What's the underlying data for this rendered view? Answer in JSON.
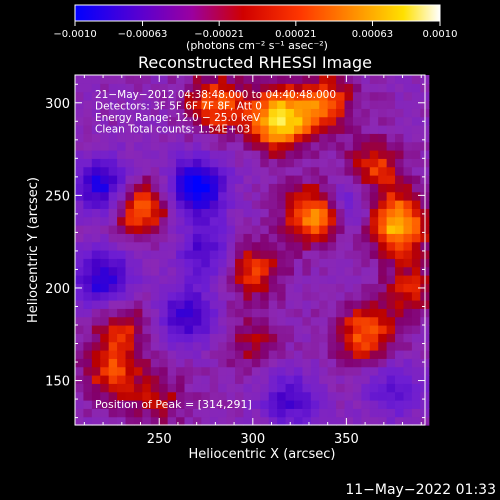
{
  "chart_data": {
    "type": "heatmap",
    "title": "Reconstructed RHESSI Image",
    "xlabel": "Heliocentric X (arcsec)",
    "ylabel": "Heliocentric Y (arcsec)",
    "xlim": [
      205,
      392
    ],
    "ylim": [
      126,
      315
    ],
    "x_ticks": [
      250,
      300,
      350
    ],
    "y_ticks": [
      150,
      200,
      250,
      300
    ],
    "colorbar": {
      "range": [
        -0.001,
        0.001
      ],
      "tick_values": [
        -0.001,
        -0.00063,
        -0.00021,
        0.00021,
        0.00063,
        0.001
      ],
      "tick_labels": [
        "−0.0010",
        "−0.00063",
        "−0.00021",
        "0.00021",
        "0.00063",
        "0.0010"
      ],
      "units_label": "(photons cm⁻² s⁻¹ asec⁻²)"
    },
    "annotations": [
      "21−May−2012 04:38:48.000 to 04:40:48.000",
      "Detectors: 3F 5F 6F 7F 8F, Att 0",
      "Energy Range: 12.0 − 25.0 keV",
      "Clean     Total counts: 1.54E+03"
    ],
    "peak_label": "Position of Peak = [314,291]",
    "peak": [
      314,
      291
    ],
    "bright_sources": [
      {
        "x": 334,
        "y": 240,
        "v": 0.00085
      },
      {
        "x": 377,
        "y": 235,
        "v": 0.0009
      },
      {
        "x": 314,
        "y": 291,
        "v": 0.001
      },
      {
        "x": 240,
        "y": 244,
        "v": 0.0007
      },
      {
        "x": 338,
        "y": 300,
        "v": 0.0006
      },
      {
        "x": 365,
        "y": 265,
        "v": 0.0005
      },
      {
        "x": 280,
        "y": 300,
        "v": 0.0006
      },
      {
        "x": 300,
        "y": 210,
        "v": 0.0005
      },
      {
        "x": 230,
        "y": 180,
        "v": 0.0004
      },
      {
        "x": 225,
        "y": 155,
        "v": 0.0005
      },
      {
        "x": 360,
        "y": 175,
        "v": 0.0006
      },
      {
        "x": 385,
        "y": 200,
        "v": 0.0004
      },
      {
        "x": 300,
        "y": 170,
        "v": 0.0003
      },
      {
        "x": 250,
        "y": 140,
        "v": 0.0003
      }
    ],
    "dark_sources": [
      {
        "x": 270,
        "y": 255,
        "v": -0.0009
      },
      {
        "x": 220,
        "y": 255,
        "v": -0.0007
      },
      {
        "x": 265,
        "y": 185,
        "v": -0.0006
      },
      {
        "x": 220,
        "y": 205,
        "v": -0.0007
      },
      {
        "x": 350,
        "y": 245,
        "v": -0.0005
      },
      {
        "x": 320,
        "y": 140,
        "v": -0.0005
      },
      {
        "x": 375,
        "y": 145,
        "v": -0.0004
      },
      {
        "x": 275,
        "y": 220,
        "v": -0.0005
      }
    ]
  },
  "footer": {
    "timestamp": "11−May−2022 01:33"
  }
}
